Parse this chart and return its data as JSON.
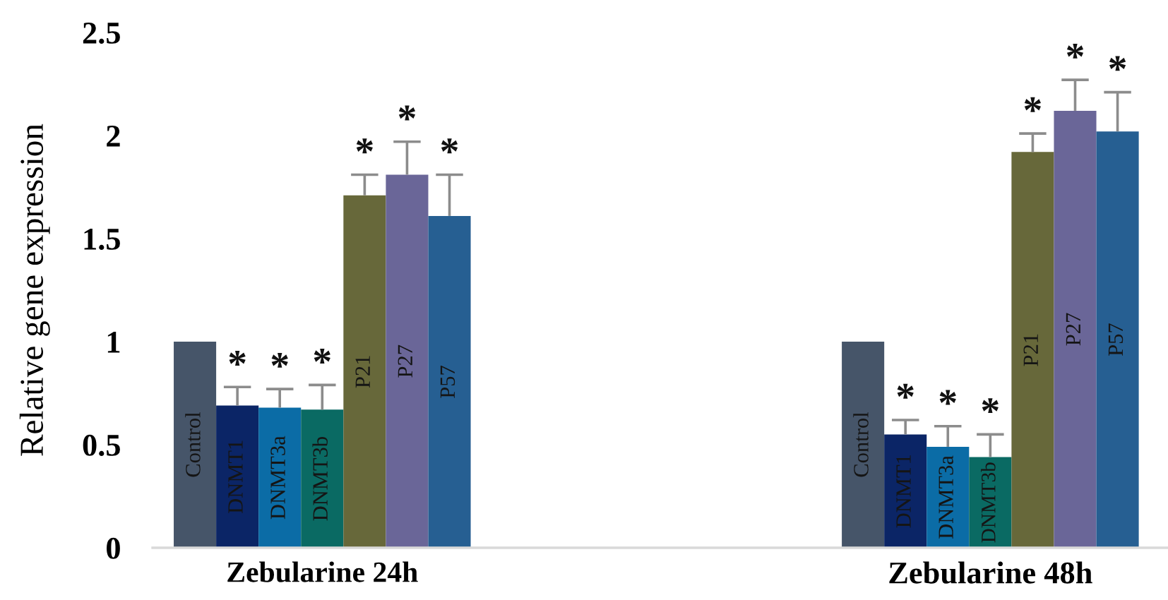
{
  "chart_data": {
    "type": "bar",
    "ylabel": "Relative gene expression",
    "categories": [
      "Zebularine 24h",
      "Zebularine 48h"
    ],
    "ylim": [
      0,
      2.5
    ],
    "yticks": [
      0,
      0.5,
      1,
      1.5,
      2,
      2.5
    ],
    "series": [
      {
        "name": "Control",
        "color": "#465569",
        "values": [
          1,
          1
        ]
      },
      {
        "name": "DNMT1",
        "color": "#0b2566",
        "values": [
          0.69,
          0.55
        ],
        "errors": [
          [
            0.69,
            0.78
          ],
          [
            0.55,
            0.62
          ]
        ],
        "value_labels": [
          "*",
          "*"
        ]
      },
      {
        "name": "DNMT3a",
        "color": "#0b6ca6",
        "values": [
          0.68,
          0.49
        ],
        "errors": [
          [
            0.68,
            0.77
          ],
          [
            0.49,
            0.59
          ]
        ],
        "value_labels": [
          "*",
          "*"
        ]
      },
      {
        "name": "DNMT3b",
        "color": "#0a6a63",
        "values": [
          0.67,
          0.44
        ],
        "errors": [
          [
            0.67,
            0.79
          ],
          [
            0.44,
            0.55
          ]
        ],
        "value_labels": [
          "*",
          "*"
        ]
      },
      {
        "name": "P21",
        "color": "#67683a",
        "values": [
          1.71,
          1.92
        ],
        "errors": [
          [
            1.71,
            1.81
          ],
          [
            1.92,
            2.01
          ]
        ],
        "value_labels": [
          "*",
          "*"
        ]
      },
      {
        "name": "P27",
        "color": "#6a6698",
        "values": [
          1.81,
          2.12
        ],
        "errors": [
          [
            1.81,
            1.97
          ],
          [
            2.12,
            2.27
          ]
        ],
        "value_labels": [
          "*",
          "*"
        ]
      },
      {
        "name": "P57",
        "color": "#265f92",
        "values": [
          1.61,
          2.02
        ],
        "errors": [
          [
            1.61,
            1.81
          ],
          [
            2.02,
            2.21
          ]
        ],
        "value_labels": [
          "*",
          "*"
        ]
      }
    ]
  }
}
